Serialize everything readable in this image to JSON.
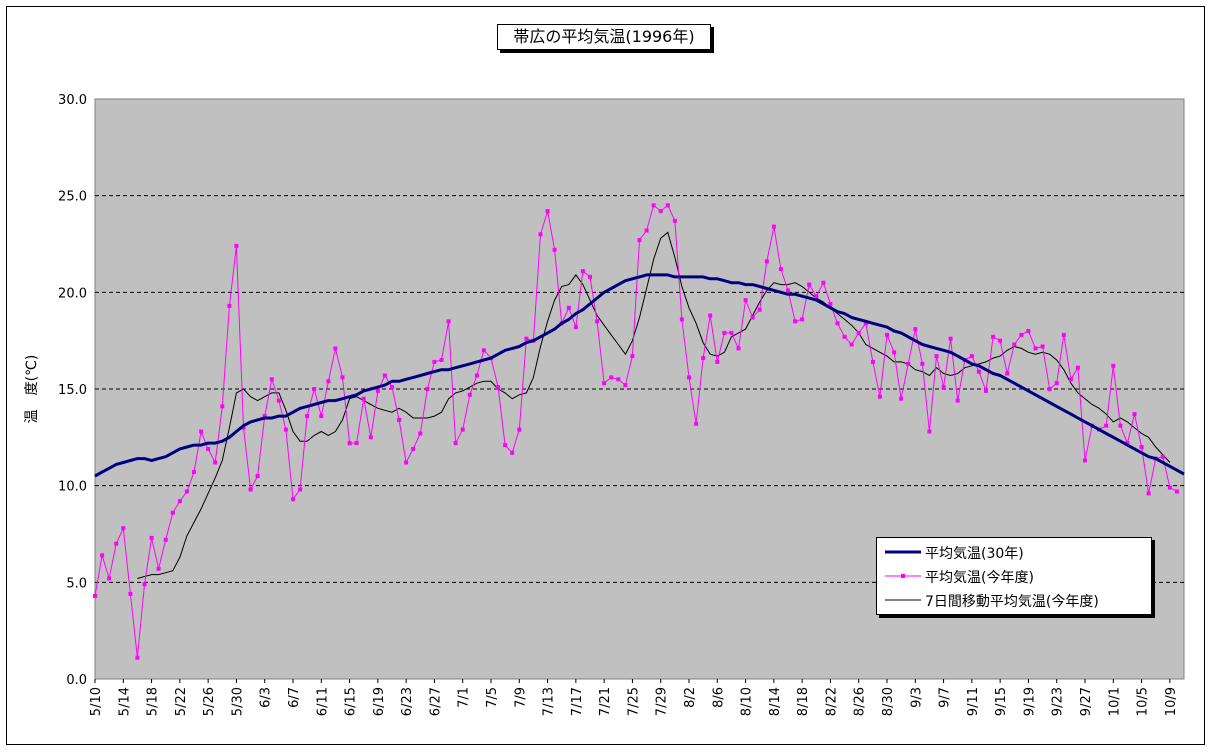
{
  "title": "帯広の平均気温(1996年)",
  "ylabel": "温　度(℃)",
  "colors": {
    "avg30": "#000080",
    "thisyear": "#ff00ff",
    "moving7": "#000000",
    "plot_bg": "#c0c0c0",
    "grid": "#000000"
  },
  "chart_data": {
    "type": "line",
    "title": "帯広の平均気温(1996年)",
    "ylabel": "温　度(℃)",
    "ylim": [
      0,
      30
    ],
    "yticks": [
      "0.0",
      "5.0",
      "10.0",
      "15.0",
      "20.0",
      "25.0",
      "30.0"
    ],
    "grid": "horizontal dashed",
    "legend_position": "bottom-right",
    "x_start": "5/10",
    "x_end": "10/10",
    "xtick_labels": [
      "5/10",
      "5/14",
      "5/18",
      "5/22",
      "5/26",
      "5/30",
      "6/3",
      "6/7",
      "6/11",
      "6/15",
      "6/19",
      "6/23",
      "6/27",
      "7/1",
      "7/5",
      "7/9",
      "7/13",
      "7/17",
      "7/21",
      "7/25",
      "7/29",
      "8/2",
      "8/6",
      "8/10",
      "8/14",
      "8/18",
      "8/22",
      "8/26",
      "8/30",
      "9/3",
      "9/7",
      "9/11",
      "9/15",
      "9/19",
      "9/23",
      "9/27",
      "10/1",
      "10/5",
      "10/9"
    ],
    "series": [
      {
        "name": "平均気温(30年)",
        "values": [
          10.5,
          10.7,
          10.9,
          11.1,
          11.2,
          11.3,
          11.4,
          11.4,
          11.3,
          11.4,
          11.5,
          11.7,
          11.9,
          12.0,
          12.1,
          12.1,
          12.2,
          12.2,
          12.3,
          12.5,
          12.8,
          13.1,
          13.3,
          13.4,
          13.5,
          13.5,
          13.6,
          13.6,
          13.8,
          14.0,
          14.1,
          14.2,
          14.3,
          14.4,
          14.4,
          14.5,
          14.6,
          14.7,
          14.9,
          15.0,
          15.1,
          15.2,
          15.4,
          15.4,
          15.5,
          15.6,
          15.7,
          15.8,
          15.9,
          16.0,
          16.0,
          16.1,
          16.2,
          16.3,
          16.4,
          16.5,
          16.6,
          16.8,
          17.0,
          17.1,
          17.2,
          17.4,
          17.5,
          17.7,
          17.9,
          18.1,
          18.4,
          18.6,
          18.9,
          19.1,
          19.4,
          19.7,
          20.0,
          20.2,
          20.4,
          20.6,
          20.7,
          20.8,
          20.9,
          20.9,
          20.9,
          20.9,
          20.8,
          20.8,
          20.8,
          20.8,
          20.8,
          20.7,
          20.7,
          20.6,
          20.5,
          20.5,
          20.4,
          20.4,
          20.3,
          20.2,
          20.1,
          20.0,
          19.9,
          19.9,
          19.8,
          19.7,
          19.6,
          19.4,
          19.2,
          19.0,
          18.9,
          18.7,
          18.6,
          18.5,
          18.4,
          18.3,
          18.2,
          18.0,
          17.9,
          17.7,
          17.5,
          17.3,
          17.2,
          17.1,
          17.0,
          16.9,
          16.7,
          16.5,
          16.3,
          16.2,
          16.0,
          15.8,
          15.7,
          15.5,
          15.3,
          15.1,
          14.9,
          14.7,
          14.5,
          14.3,
          14.1,
          13.9,
          13.7,
          13.5,
          13.3,
          13.1,
          12.9,
          12.7,
          12.5,
          12.3,
          12.1,
          11.9,
          11.7,
          11.5,
          11.4,
          11.2,
          11.0,
          10.8,
          10.6
        ]
      },
      {
        "name": "平均気温(今年度)",
        "values": [
          4.3,
          6.4,
          5.2,
          7.0,
          7.8,
          4.4,
          1.1,
          4.9,
          7.3,
          5.7,
          7.2,
          8.6,
          9.2,
          9.7,
          10.7,
          12.8,
          11.9,
          11.2,
          14.1,
          19.3,
          22.4,
          13.0,
          9.8,
          10.5,
          13.6,
          15.5,
          14.4,
          12.9,
          9.3,
          9.8,
          13.6,
          15.0,
          13.6,
          15.4,
          17.1,
          15.6,
          12.2,
          12.2,
          14.5,
          12.5,
          14.9,
          15.7,
          15.1,
          13.4,
          11.2,
          11.9,
          12.7,
          15.0,
          16.4,
          16.5,
          18.5,
          12.2,
          12.9,
          14.7,
          15.7,
          17.0,
          16.6,
          15.1,
          12.1,
          11.7,
          12.9,
          17.6,
          17.5,
          23.0,
          24.2,
          22.2,
          18.4,
          19.2,
          18.2,
          21.1,
          20.8,
          18.5,
          15.3,
          15.6,
          15.5,
          15.2,
          16.7,
          22.7,
          23.2,
          24.5,
          24.2,
          24.5,
          23.7,
          18.6,
          15.6,
          13.2,
          16.6,
          18.8,
          16.4,
          17.9,
          17.9,
          17.1,
          19.6,
          18.7,
          19.1,
          21.6,
          23.4,
          21.2,
          20.1,
          18.5,
          18.6,
          20.4,
          19.8,
          20.5,
          19.4,
          18.4,
          17.7,
          17.3,
          17.9,
          18.4,
          16.4,
          14.6,
          17.8,
          16.9,
          14.5,
          16.3,
          18.1,
          16.3,
          12.8,
          16.7,
          15.1,
          17.6,
          14.4,
          16.5,
          16.7,
          15.9,
          14.9,
          17.7,
          17.5,
          15.8,
          17.3,
          17.8,
          18.0,
          17.1,
          17.2,
          15.0,
          15.3,
          17.8,
          15.5,
          16.1,
          11.3,
          13.1,
          12.9,
          13.1,
          16.2,
          13.1,
          12.2,
          13.7,
          12.0,
          9.6,
          11.4,
          11.5,
          9.9,
          9.7
        ]
      },
      {
        "name": "7日間移動平均気温(今年度)",
        "values": [
          null,
          null,
          null,
          null,
          null,
          null,
          5.2,
          5.3,
          5.4,
          5.4,
          5.5,
          5.6,
          6.3,
          7.4,
          8.1,
          8.8,
          9.6,
          10.4,
          11.3,
          13.0,
          14.8,
          15.0,
          14.6,
          14.4,
          14.6,
          14.8,
          14.8,
          13.9,
          12.8,
          12.3,
          12.3,
          12.6,
          12.8,
          12.6,
          12.8,
          13.4,
          14.5,
          14.6,
          14.4,
          14.2,
          14.0,
          13.9,
          13.8,
          14.0,
          13.8,
          13.5,
          13.5,
          13.5,
          13.6,
          13.8,
          14.5,
          14.8,
          14.9,
          15.1,
          15.3,
          15.4,
          15.4,
          15.0,
          14.8,
          14.5,
          14.7,
          14.8,
          15.6,
          17.2,
          18.5,
          19.6,
          20.3,
          20.4,
          20.9,
          20.4,
          19.6,
          18.8,
          18.3,
          17.8,
          17.3,
          16.8,
          17.5,
          18.7,
          20.2,
          21.7,
          22.8,
          23.1,
          21.8,
          20.3,
          19.2,
          18.4,
          17.4,
          16.8,
          16.7,
          16.9,
          17.7,
          17.9,
          18.1,
          18.8,
          19.5,
          20.1,
          20.5,
          20.4,
          20.4,
          20.5,
          20.3,
          20.0,
          19.7,
          19.5,
          19.2,
          18.9,
          18.6,
          18.3,
          17.9,
          17.3,
          17.1,
          16.9,
          16.7,
          16.4,
          16.4,
          16.3,
          16.0,
          15.9,
          15.7,
          16.1,
          15.8,
          15.7,
          15.8,
          16.1,
          16.2,
          16.3,
          16.4,
          16.6,
          16.7,
          17.0,
          17.2,
          17.1,
          16.9,
          16.8,
          16.9,
          16.8,
          16.5,
          16.0,
          15.3,
          14.8,
          14.5,
          14.2,
          14.0,
          13.7,
          13.3,
          13.5,
          13.3,
          13.0,
          12.7,
          12.5,
          12.0,
          11.6,
          11.2
        ]
      }
    ]
  }
}
